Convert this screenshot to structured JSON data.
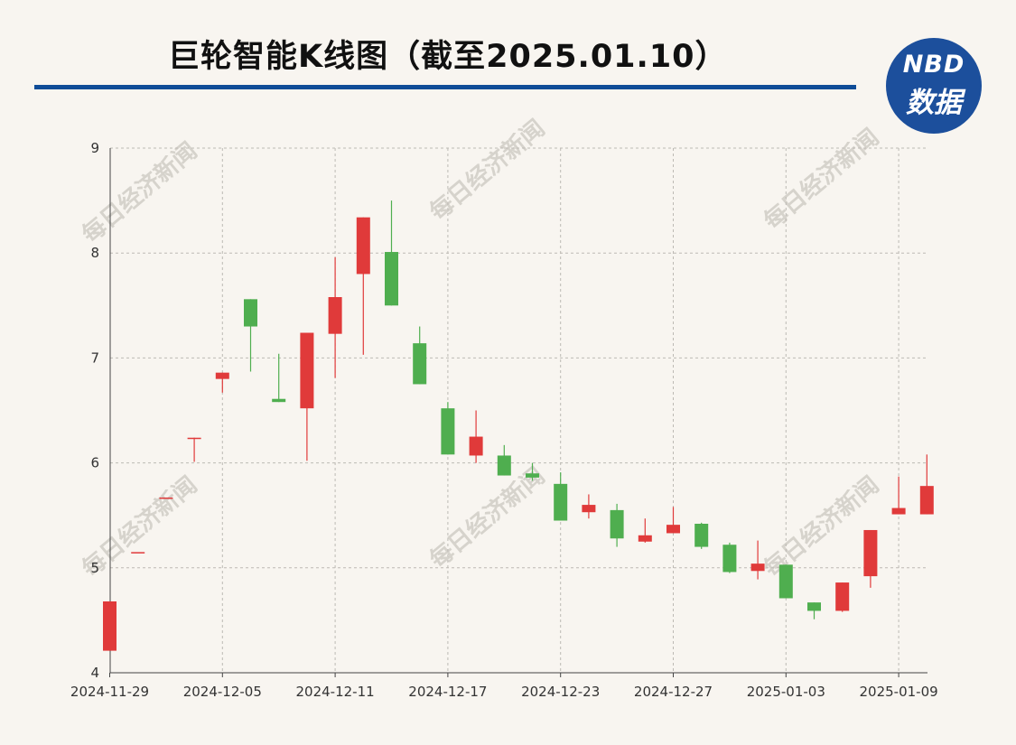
{
  "header": {
    "title": "巨轮智能K线图（截至2025.01.10）"
  },
  "logo": {
    "line1": "NBD",
    "line2": "数据"
  },
  "watermark": "每日经济新闻",
  "colors": {
    "up": "#e03a3a",
    "down": "#4fae4f",
    "rule": "#0f4c97",
    "grid": "#bdbab4",
    "background": "#f8f5f0"
  },
  "chart_data": {
    "type": "candlestick",
    "title": "巨轮智能K线图（截至2025.01.10）",
    "xlabel": "",
    "ylabel": "",
    "ylim": [
      4,
      9
    ],
    "yticks": [
      4,
      5,
      6,
      7,
      8,
      9
    ],
    "grid": true,
    "xtick_labels": [
      "2024-11-29",
      "2024-12-05",
      "2024-12-11",
      "2024-12-17",
      "2024-12-23",
      "2024-12-27",
      "2025-01-03",
      "2025-01-09"
    ],
    "xtick_index": [
      0,
      4,
      8,
      12,
      16,
      20,
      24,
      28
    ],
    "candles": [
      {
        "open": 4.21,
        "close": 4.68,
        "high": 4.68,
        "low": 4.21
      },
      {
        "open": 5.15,
        "close": 5.15,
        "high": 5.15,
        "low": 5.15
      },
      {
        "open": 5.67,
        "close": 5.67,
        "high": 5.67,
        "low": 5.67
      },
      {
        "open": 6.24,
        "close": 6.24,
        "high": 6.24,
        "low": 6.01
      },
      {
        "open": 6.8,
        "close": 6.86,
        "high": 6.86,
        "low": 6.67
      },
      {
        "open": 7.56,
        "close": 7.3,
        "high": 7.56,
        "low": 6.87
      },
      {
        "open": 6.61,
        "close": 6.58,
        "high": 7.04,
        "low": 6.58
      },
      {
        "open": 6.52,
        "close": 7.24,
        "high": 7.24,
        "low": 6.02
      },
      {
        "open": 7.23,
        "close": 7.58,
        "high": 7.96,
        "low": 6.81
      },
      {
        "open": 7.8,
        "close": 8.34,
        "high": 8.34,
        "low": 7.03
      },
      {
        "open": 8.01,
        "close": 7.5,
        "high": 8.5,
        "low": 7.5
      },
      {
        "open": 7.14,
        "close": 6.75,
        "high": 7.3,
        "low": 6.75
      },
      {
        "open": 6.52,
        "close": 6.08,
        "high": 6.58,
        "low": 6.08
      },
      {
        "open": 6.07,
        "close": 6.25,
        "high": 6.5,
        "low": 6.0
      },
      {
        "open": 6.07,
        "close": 5.88,
        "high": 6.17,
        "low": 5.88
      },
      {
        "open": 5.9,
        "close": 5.86,
        "high": 6.0,
        "low": 5.83
      },
      {
        "open": 5.8,
        "close": 5.45,
        "high": 5.91,
        "low": 5.45
      },
      {
        "open": 5.53,
        "close": 5.6,
        "high": 5.7,
        "low": 5.47
      },
      {
        "open": 5.55,
        "close": 5.28,
        "high": 5.61,
        "low": 5.2
      },
      {
        "open": 5.25,
        "close": 5.31,
        "high": 5.47,
        "low": 5.24
      },
      {
        "open": 5.33,
        "close": 5.41,
        "high": 5.58,
        "low": 5.33
      },
      {
        "open": 5.42,
        "close": 5.2,
        "high": 5.43,
        "low": 5.18
      },
      {
        "open": 5.22,
        "close": 4.96,
        "high": 5.24,
        "low": 4.95
      },
      {
        "open": 4.97,
        "close": 5.04,
        "high": 5.26,
        "low": 4.89
      },
      {
        "open": 5.03,
        "close": 4.71,
        "high": 5.03,
        "low": 4.71
      },
      {
        "open": 4.67,
        "close": 4.59,
        "high": 4.67,
        "low": 4.51
      },
      {
        "open": 4.59,
        "close": 4.86,
        "high": 4.86,
        "low": 4.58
      },
      {
        "open": 4.92,
        "close": 5.36,
        "high": 5.36,
        "low": 4.81
      },
      {
        "open": 5.51,
        "close": 5.57,
        "high": 5.87,
        "low": 5.51
      },
      {
        "open": 5.51,
        "close": 5.78,
        "high": 6.08,
        "low": 5.51
      }
    ]
  }
}
